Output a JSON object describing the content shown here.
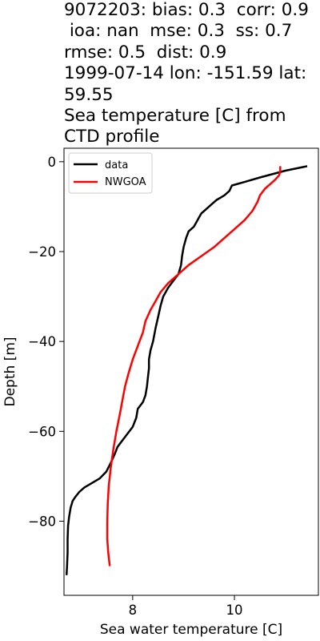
{
  "title_lines": [
    "9072203: bias: 0.3  corr: 0.9",
    " ioa: nan  mse: 0.3  ss: 0.7",
    "rmse: 0.5  dist: 0.9",
    "1999-07-14 lon: -151.59 lat:",
    "59.55",
    "Sea temperature [C] from",
    "CTD profile"
  ],
  "chart_data": {
    "type": "line",
    "xlabel": "Sea water temperature [C]",
    "ylabel": "Depth [m]",
    "xlim": [
      6.65,
      11.65
    ],
    "ylim": [
      -96.5,
      3.0
    ],
    "xticks": [
      8,
      10
    ],
    "xtick_labels": [
      "8",
      "10"
    ],
    "yticks": [
      0,
      -20,
      -40,
      -60,
      -80
    ],
    "ytick_labels": [
      "0",
      "−20",
      "−40",
      "−60",
      "−80"
    ],
    "grid": false,
    "legend_position": "top-left",
    "series": [
      {
        "name": "data",
        "color": "#000000",
        "points": [
          [
            11.43,
            -1
          ],
          [
            11.0,
            -2
          ],
          [
            10.5,
            -3.5
          ],
          [
            10.2,
            -4.5
          ],
          [
            9.95,
            -5.3
          ],
          [
            9.9,
            -6.5
          ],
          [
            9.8,
            -7.5
          ],
          [
            9.65,
            -8.5
          ],
          [
            9.55,
            -9.5
          ],
          [
            9.45,
            -10.5
          ],
          [
            9.35,
            -11.5
          ],
          [
            9.3,
            -12.5
          ],
          [
            9.25,
            -13.5
          ],
          [
            9.2,
            -14.5
          ],
          [
            9.1,
            -15.5
          ],
          [
            9.05,
            -17
          ],
          [
            9.0,
            -19
          ],
          [
            8.97,
            -21
          ],
          [
            8.95,
            -23
          ],
          [
            8.9,
            -25
          ],
          [
            8.8,
            -26.5
          ],
          [
            8.7,
            -28
          ],
          [
            8.6,
            -30
          ],
          [
            8.55,
            -32
          ],
          [
            8.5,
            -34.5
          ],
          [
            8.45,
            -37
          ],
          [
            8.4,
            -40
          ],
          [
            8.35,
            -42
          ],
          [
            8.32,
            -44
          ],
          [
            8.32,
            -46
          ],
          [
            8.3,
            -48
          ],
          [
            8.28,
            -50
          ],
          [
            8.25,
            -52
          ],
          [
            8.2,
            -53.5
          ],
          [
            8.1,
            -55
          ],
          [
            8.07,
            -57
          ],
          [
            8.0,
            -59
          ],
          [
            7.9,
            -60.5
          ],
          [
            7.8,
            -62
          ],
          [
            7.7,
            -63.5
          ],
          [
            7.65,
            -65
          ],
          [
            7.57,
            -67
          ],
          [
            7.48,
            -69
          ],
          [
            7.35,
            -70.5
          ],
          [
            7.2,
            -71.5
          ],
          [
            7.05,
            -72.5
          ],
          [
            6.95,
            -73.5
          ],
          [
            6.88,
            -74.5
          ],
          [
            6.82,
            -75.5
          ],
          [
            6.78,
            -77
          ],
          [
            6.75,
            -79
          ],
          [
            6.73,
            -81
          ],
          [
            6.72,
            -84
          ],
          [
            6.72,
            -87
          ],
          [
            6.71,
            -90
          ],
          [
            6.7,
            -92
          ]
        ]
      },
      {
        "name": "NWGOA",
        "color": "#ff0000",
        "points": [
          [
            10.9,
            -1
          ],
          [
            10.9,
            -2
          ],
          [
            10.88,
            -3
          ],
          [
            10.8,
            -4
          ],
          [
            10.7,
            -5
          ],
          [
            10.6,
            -6
          ],
          [
            10.5,
            -7.5
          ],
          [
            10.45,
            -9
          ],
          [
            10.35,
            -11
          ],
          [
            10.2,
            -13
          ],
          [
            10.0,
            -15
          ],
          [
            9.8,
            -17
          ],
          [
            9.6,
            -19
          ],
          [
            9.35,
            -21
          ],
          [
            9.1,
            -23
          ],
          [
            8.9,
            -25
          ],
          [
            8.7,
            -27
          ],
          [
            8.55,
            -29
          ],
          [
            8.45,
            -31
          ],
          [
            8.35,
            -33
          ],
          [
            8.25,
            -35.5
          ],
          [
            8.2,
            -38
          ],
          [
            8.1,
            -41
          ],
          [
            8.0,
            -44
          ],
          [
            7.92,
            -47
          ],
          [
            7.85,
            -50
          ],
          [
            7.8,
            -53
          ],
          [
            7.75,
            -56
          ],
          [
            7.68,
            -60
          ],
          [
            7.62,
            -64
          ],
          [
            7.57,
            -68
          ],
          [
            7.53,
            -72
          ],
          [
            7.51,
            -76
          ],
          [
            7.5,
            -80
          ],
          [
            7.5,
            -84
          ],
          [
            7.52,
            -87
          ],
          [
            7.55,
            -90
          ]
        ]
      }
    ]
  }
}
